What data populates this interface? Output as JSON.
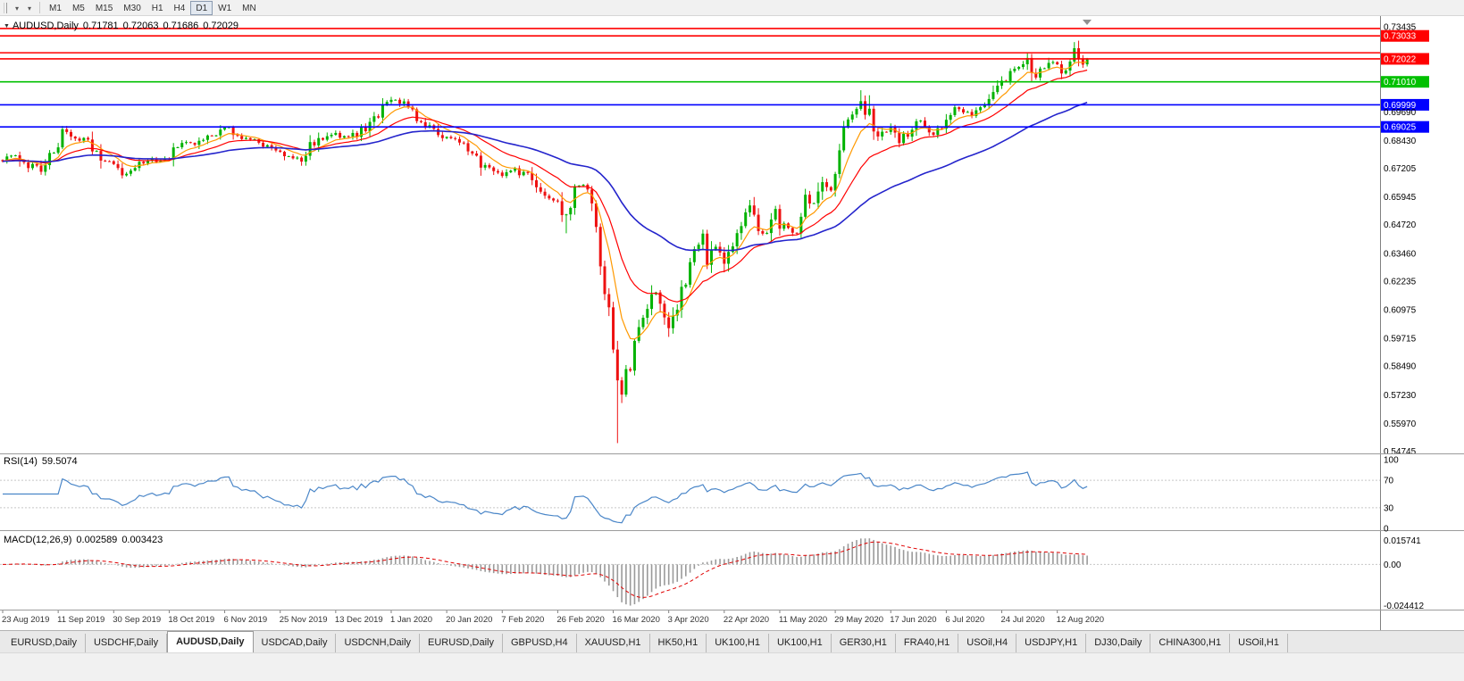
{
  "icons": {
    "collapse_arrow": "▼",
    "menu_arrow": "▾"
  },
  "toolbar": {
    "timeframes": [
      {
        "label": "M1"
      },
      {
        "label": "M5"
      },
      {
        "label": "M15"
      },
      {
        "label": "M30"
      },
      {
        "label": "H1"
      },
      {
        "label": "H4"
      },
      {
        "label": "D1",
        "active": true
      },
      {
        "label": "W1"
      },
      {
        "label": "MN"
      }
    ]
  },
  "tabs": {
    "items": [
      {
        "label": "EURUSD,Daily"
      },
      {
        "label": "USDCHF,Daily"
      },
      {
        "label": "AUDUSD,Daily",
        "active": true
      },
      {
        "label": "USDCAD,Daily"
      },
      {
        "label": "USDCNH,Daily"
      },
      {
        "label": "EURUSD,Daily"
      },
      {
        "label": "GBPUSD,H4"
      },
      {
        "label": "XAUUSD,H1"
      },
      {
        "label": "HK50,H1"
      },
      {
        "label": "UK100,H1"
      },
      {
        "label": "UK100,H1"
      },
      {
        "label": "GER30,H1"
      },
      {
        "label": "FRA40,H1"
      },
      {
        "label": "USOil,H4"
      },
      {
        "label": "USDJPY,H1"
      },
      {
        "label": "DJ30,Daily"
      },
      {
        "label": "CHINA300,H1"
      },
      {
        "label": "USOil,H1"
      }
    ]
  },
  "chart_data": {
    "type": "candlestick",
    "title_symbol": "AUDUSD,Daily",
    "ohlc": {
      "open": "0.71781",
      "high": "0.72063",
      "low": "0.71686",
      "close": "0.72029"
    },
    "colors": {
      "up": "#00b200",
      "down": "#ee1111",
      "macd_hist": "#9a9a9a",
      "macd_signal": "#e00000"
    },
    "price_scale": {
      "max": 0.73435,
      "min": 0.54745
    },
    "y_axis_ticks": [
      0.73435,
      0.6969,
      0.6843,
      0.67205,
      0.65945,
      0.6472,
      0.6346,
      0.62235,
      0.60975,
      0.59715,
      0.5849,
      0.5723,
      0.5597,
      0.54745
    ],
    "horizontal_lines": [
      {
        "price": 0.7336,
        "color": "#ff0000",
        "label": null
      },
      {
        "price": 0.73033,
        "color": "#ff0000",
        "label": "0.73033"
      },
      {
        "price": 0.7229,
        "color": "#ff0000",
        "label": null
      },
      {
        "price": 0.72022,
        "color": "#ff0000",
        "label": "0.72022"
      },
      {
        "price": 0.7101,
        "color": "#00c000",
        "label": "0.71010"
      },
      {
        "price": 0.69999,
        "color": "#0000ff",
        "label": "0.69999"
      },
      {
        "price": 0.69025,
        "color": "#0000ff",
        "label": "0.69025"
      }
    ],
    "x_axis_labels": [
      "23 Aug 2019",
      "11 Sep 2019",
      "30 Sep 2019",
      "18 Oct 2019",
      "6 Nov 2019",
      "25 Nov 2019",
      "13 Dec 2019",
      "1 Jan 2020",
      "20 Jan 2020",
      "7 Feb 2020",
      "26 Feb 2020",
      "16 Mar 2020",
      "3 Apr 2020",
      "22 Apr 2020",
      "11 May 2020",
      "29 May 2020",
      "17 Jun 2020",
      "6 Jul 2020",
      "24 Jul 2020",
      "12 Aug 2020"
    ],
    "bars_per_label": 13,
    "bar_count": 255,
    "price_path": [
      [
        0,
        0.6757
      ],
      [
        3,
        0.6775
      ],
      [
        6,
        0.6735
      ],
      [
        9,
        0.672
      ],
      [
        12,
        0.6808
      ],
      [
        14,
        0.6878
      ],
      [
        17,
        0.6862
      ],
      [
        20,
        0.6838
      ],
      [
        23,
        0.6768
      ],
      [
        26,
        0.6742
      ],
      [
        28,
        0.67
      ],
      [
        30,
        0.6716
      ],
      [
        33,
        0.6745
      ],
      [
        36,
        0.6758
      ],
      [
        39,
        0.6772
      ],
      [
        42,
        0.6838
      ],
      [
        45,
        0.6828
      ],
      [
        48,
        0.6856
      ],
      [
        51,
        0.6892
      ],
      [
        52,
        0.6908
      ],
      [
        54,
        0.6882
      ],
      [
        57,
        0.6852
      ],
      [
        60,
        0.6832
      ],
      [
        63,
        0.6802
      ],
      [
        65,
        0.6788
      ],
      [
        68,
        0.6772
      ],
      [
        70,
        0.6762
      ],
      [
        73,
        0.684
      ],
      [
        76,
        0.6856
      ],
      [
        78,
        0.687
      ],
      [
        81,
        0.6852
      ],
      [
        84,
        0.6886
      ],
      [
        87,
        0.693
      ],
      [
        90,
        0.7
      ],
      [
        91,
        0.7022
      ],
      [
        93,
        0.7012
      ],
      [
        95,
        0.6986
      ],
      [
        98,
        0.6922
      ],
      [
        101,
        0.6882
      ],
      [
        104,
        0.6856
      ],
      [
        107,
        0.684
      ],
      [
        110,
        0.6776
      ],
      [
        113,
        0.6722
      ],
      [
        116,
        0.6702
      ],
      [
        117,
        0.6686
      ],
      [
        120,
        0.6716
      ],
      [
        123,
        0.6682
      ],
      [
        126,
        0.6622
      ],
      [
        128,
        0.66
      ],
      [
        130,
        0.656
      ],
      [
        132,
        0.6516
      ],
      [
        134,
        0.6622
      ],
      [
        136,
        0.6642
      ],
      [
        138,
        0.6586
      ],
      [
        139,
        0.6496
      ],
      [
        140,
        0.6292
      ],
      [
        141,
        0.6186
      ],
      [
        142,
        0.612
      ],
      [
        143,
        0.592
      ],
      [
        144,
        0.576
      ],
      [
        145,
        0.5742
      ],
      [
        146,
        0.5802
      ],
      [
        147,
        0.5826
      ],
      [
        148,
        0.5962
      ],
      [
        150,
        0.6052
      ],
      [
        152,
        0.6172
      ],
      [
        154,
        0.6136
      ],
      [
        156,
        0.6022
      ],
      [
        158,
        0.6092
      ],
      [
        160,
        0.6236
      ],
      [
        162,
        0.6346
      ],
      [
        164,
        0.644
      ],
      [
        165,
        0.6322
      ],
      [
        167,
        0.6366
      ],
      [
        169,
        0.6302
      ],
      [
        171,
        0.6372
      ],
      [
        173,
        0.6466
      ],
      [
        175,
        0.6552
      ],
      [
        177,
        0.6422
      ],
      [
        179,
        0.6456
      ],
      [
        181,
        0.6532
      ],
      [
        182,
        0.6486
      ],
      [
        184,
        0.6452
      ],
      [
        186,
        0.6436
      ],
      [
        188,
        0.6592
      ],
      [
        190,
        0.6566
      ],
      [
        192,
        0.6656
      ],
      [
        194,
        0.6636
      ],
      [
        195,
        0.6668
      ],
      [
        196,
        0.6796
      ],
      [
        197,
        0.6896
      ],
      [
        199,
        0.6942
      ],
      [
        201,
        0.7019
      ],
      [
        202,
        0.6962
      ],
      [
        203,
        0.7002
      ],
      [
        204,
        0.6852
      ],
      [
        206,
        0.6882
      ],
      [
        208,
        0.6886
      ],
      [
        210,
        0.6836
      ],
      [
        212,
        0.6882
      ],
      [
        214,
        0.6932
      ],
      [
        216,
        0.6892
      ],
      [
        218,
        0.6866
      ],
      [
        220,
        0.6906
      ],
      [
        221,
        0.6916
      ],
      [
        223,
        0.6976
      ],
      [
        225,
        0.6966
      ],
      [
        227,
        0.6952
      ],
      [
        229,
        0.6976
      ],
      [
        231,
        0.7006
      ],
      [
        233,
        0.7082
      ],
      [
        234,
        0.7106
      ],
      [
        236,
        0.7146
      ],
      [
        238,
        0.7162
      ],
      [
        240,
        0.7196
      ],
      [
        241,
        0.7146
      ],
      [
        242,
        0.7122
      ],
      [
        243,
        0.7156
      ],
      [
        245,
        0.7192
      ],
      [
        247,
        0.7166
      ],
      [
        248,
        0.7146
      ],
      [
        249,
        0.7172
      ],
      [
        250,
        0.7206
      ],
      [
        251,
        0.7246
      ],
      [
        252,
        0.7176
      ],
      [
        253,
        0.7192
      ],
      [
        254,
        0.72029
      ]
    ],
    "overrides": [
      {
        "i": 91,
        "h": 0.7035
      },
      {
        "i": 132,
        "l": 0.6434
      },
      {
        "i": 144,
        "l": 0.551
      },
      {
        "i": 201,
        "h": 0.7064
      },
      {
        "i": 203,
        "h": 0.7042
      },
      {
        "i": 240,
        "h": 0.7227
      },
      {
        "i": 251,
        "h": 0.7276
      },
      {
        "i": 254,
        "o": 0.71781,
        "h": 0.72063,
        "l": 0.71686,
        "c": 0.72029
      }
    ],
    "moving_averages": [
      {
        "period": 8,
        "color": "#ff9900",
        "width": 1.2
      },
      {
        "period": 20,
        "color": "#ff0000",
        "width": 1.2
      },
      {
        "period": 55,
        "color": "#2424cc",
        "width": 1.6
      }
    ],
    "indicators": {
      "rsi": {
        "label": "RSI(14)",
        "value": "59.5074",
        "color": "#4a86c8",
        "axis_labels": [
          100,
          70,
          30,
          0
        ],
        "levels": [
          70,
          30
        ]
      },
      "macd": {
        "label": "MACD(12,26,9)",
        "value": "0.002589",
        "signal_value": "0.003423",
        "scale": {
          "max": 0.015741,
          "min": -0.024412
        },
        "axis_labels": [
          "0.015741",
          "0.00",
          "-0.024412"
        ]
      }
    }
  }
}
